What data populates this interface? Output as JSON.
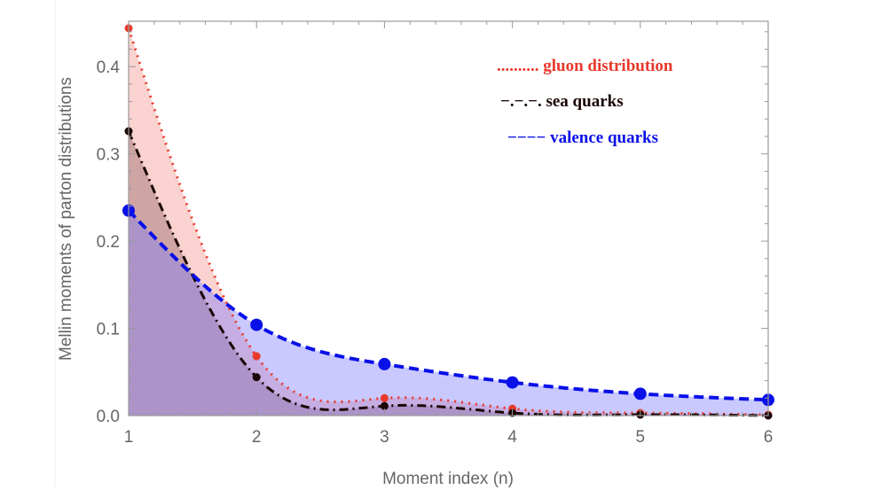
{
  "chart_data": {
    "type": "line",
    "title": "",
    "xlabel": "Moment index (n)",
    "ylabel": "Mellin  moments of parton distributions",
    "xlim": [
      1,
      6
    ],
    "ylim": [
      0,
      0.452
    ],
    "xticks": [
      "1",
      "2",
      "3",
      "4",
      "5",
      "6"
    ],
    "yticks": [
      "0.0",
      "0.1",
      "0.2",
      "0.3",
      "0.4"
    ],
    "grid": false,
    "legend_position": "top-right",
    "x": [
      1,
      2,
      3,
      4,
      5,
      6
    ],
    "series": [
      {
        "name": "gluon distribution",
        "legend_marker": "..........",
        "color": "#e8392b",
        "fill": "rgba(240,110,100,0.3)",
        "dash": "dotted",
        "values": [
          0.444,
          0.068,
          0.02,
          0.008,
          0.003,
          0.001
        ]
      },
      {
        "name": "sea quarks",
        "legend_marker": "−.−.−.",
        "color": "#1a0505",
        "fill": "rgba(110,60,60,0.3)",
        "dash": "dashdot",
        "values": [
          0.326,
          0.044,
          0.011,
          0.003,
          0.001,
          0.0
        ]
      },
      {
        "name": "valence quarks",
        "legend_marker": "−−−−",
        "color": "#0a10e8",
        "fill": "rgba(120,120,255,0.4)",
        "dash": "dashed",
        "values": [
          0.235,
          0.104,
          0.059,
          0.038,
          0.025,
          0.018
        ]
      }
    ]
  }
}
